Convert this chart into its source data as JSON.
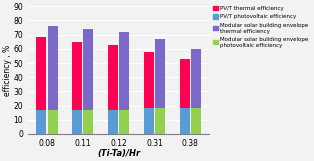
{
  "categories": [
    "0.08",
    "0.11",
    "0.12",
    "0.31",
    "0.38"
  ],
  "pvt_blue": [
    17,
    17,
    17,
    18,
    18
  ],
  "pvt_red": [
    51,
    48,
    46,
    40,
    35
  ],
  "mod_green": [
    17,
    17,
    17,
    18,
    18
  ],
  "mod_purple": [
    59,
    57,
    55,
    49,
    42
  ],
  "color_blue": "#5B9BD5",
  "color_red": "#FF0055",
  "color_green": "#92D050",
  "color_purple": "#7B68C8",
  "ylabel": "efficiency , %",
  "xlabel": "(Ti-Ta)/Hr",
  "ylim": [
    0,
    90
  ],
  "yticks": [
    0,
    10,
    20,
    30,
    40,
    50,
    60,
    70,
    80,
    90
  ],
  "legend_labels": [
    "PV/T thermal efficiency",
    "PV/T photovoltaic efficiency",
    "Modular solar building envelope\nthermal efficiency",
    "Modular solar building envelope\nphotovoltaic efficiency"
  ]
}
